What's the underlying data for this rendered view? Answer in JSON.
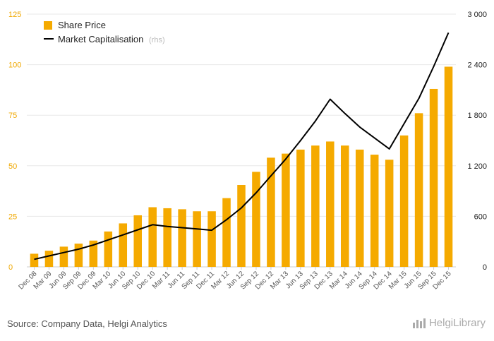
{
  "chart_data": {
    "type": "bar+line",
    "categories": [
      "Dec 08",
      "Mar 09",
      "Jun 09",
      "Sep 09",
      "Dec 09",
      "Mar 10",
      "Jun 10",
      "Sep 10",
      "Dec 10",
      "Mar 11",
      "Jun 11",
      "Sep 11",
      "Dec 11",
      "Mar 12",
      "Jun 12",
      "Sep 12",
      "Dec 12",
      "Mar 13",
      "Jun 13",
      "Sep 13",
      "Dec 13",
      "Mar 14",
      "Jun 14",
      "Sep 14",
      "Dec 14",
      "Mar 15",
      "Jun 15",
      "Sep 15",
      "Dec 15"
    ],
    "series": [
      {
        "name": "Share Price",
        "type": "bar",
        "axis": "left",
        "color": "#f5aa00",
        "values": [
          6.5,
          8,
          10,
          11.5,
          13,
          17.5,
          21.5,
          25.5,
          29.5,
          29,
          28.5,
          27.5,
          27.5,
          34,
          40.5,
          47,
          54,
          56,
          58,
          60,
          62,
          60,
          58,
          55.5,
          53,
          65,
          76,
          88,
          99
        ]
      },
      {
        "name": "Market Capitalisation",
        "note": "(rhs)",
        "type": "line",
        "axis": "right",
        "color": "#000000",
        "values": [
          90,
          130,
          170,
          210,
          260,
          320,
          380,
          440,
          500,
          480,
          465,
          450,
          435,
          560,
          700,
          880,
          1080,
          1280,
          1500,
          1730,
          1990,
          1820,
          1660,
          1530,
          1400,
          1700,
          2000,
          2380,
          2780
        ]
      }
    ],
    "y_left": {
      "min": 0,
      "max": 125,
      "ticks": [
        0,
        25,
        50,
        75,
        100,
        125
      ],
      "tick_color": "#f0a800"
    },
    "y_right": {
      "min": 0,
      "max": 3000,
      "ticks": [
        0,
        600,
        1200,
        1800,
        2400,
        3000
      ],
      "tick_labels": [
        "0",
        "600",
        "1 200",
        "1 800",
        "2 400",
        "3 000"
      ]
    },
    "grid": true,
    "legend_position": "top-left"
  },
  "footer": {
    "source": "Source: Company Data, Helgi Analytics",
    "logo": "HelgiLibrary"
  }
}
